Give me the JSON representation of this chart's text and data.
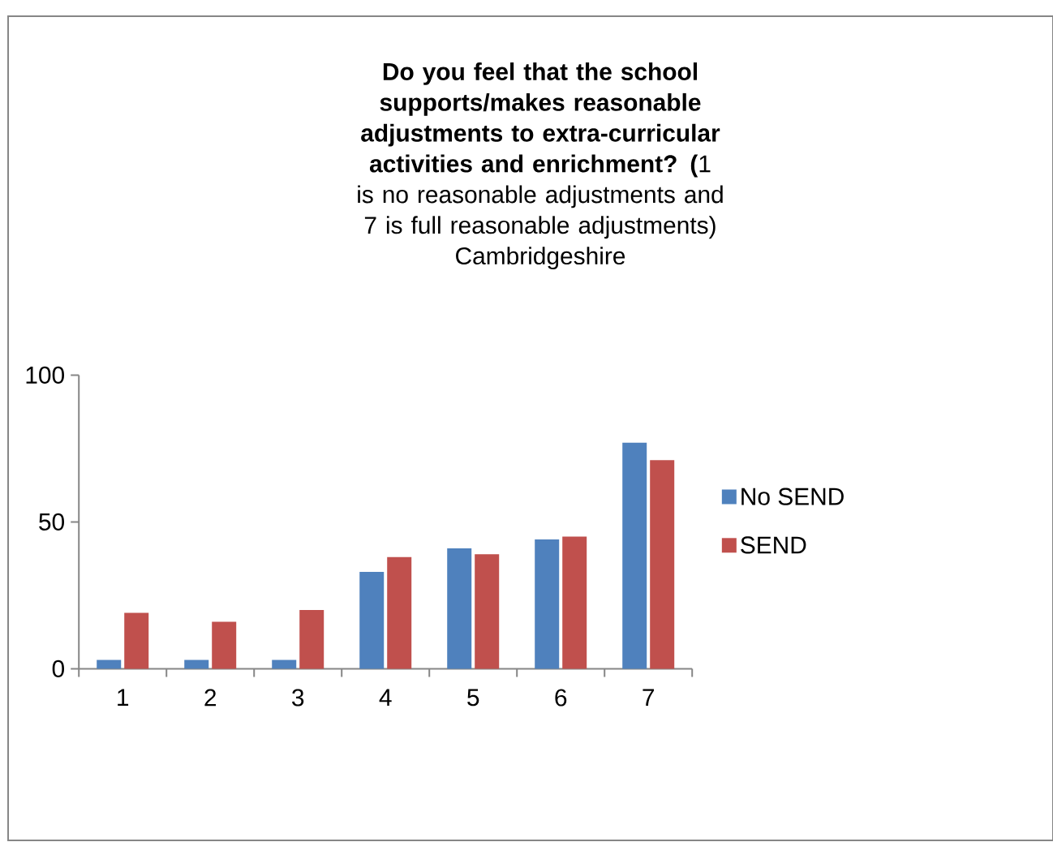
{
  "chart_data": {
    "type": "bar",
    "title": "**Do you feel that the school supports/makes reasonable adjustments to extra-curricular activities and enrichment? (**1 is no reasonable adjustments and 7 is full reasonable adjustments)",
    "subtitle": "Cambridgeshire",
    "categories": [
      "1",
      "2",
      "3",
      "4",
      "5",
      "6",
      "7"
    ],
    "series": [
      {
        "name": "No SEND",
        "color": "#4f81bd",
        "values": [
          3,
          3,
          3,
          33,
          41,
          44,
          77
        ]
      },
      {
        "name": "SEND",
        "color": "#c0504d",
        "values": [
          19,
          16,
          20,
          38,
          39,
          45,
          71
        ]
      }
    ],
    "ylim": [
      0,
      100
    ],
    "yticks": [
      0,
      50,
      100
    ],
    "legend": "right"
  }
}
